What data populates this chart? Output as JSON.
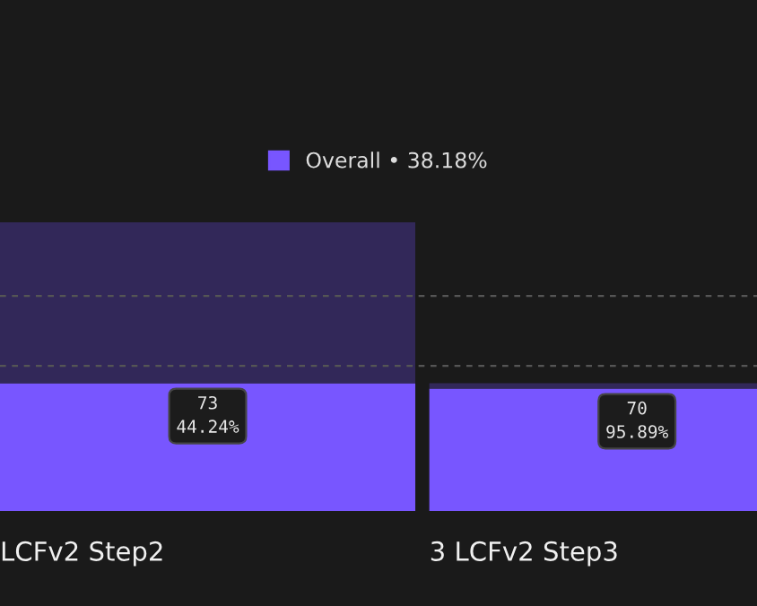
{
  "chart_data": {
    "type": "bar",
    "stacked": true,
    "categories": [
      "LCFv2 Step2",
      "3 LCFv2 Step3"
    ],
    "series": [
      {
        "name": "Overall • 38.18%",
        "color": "#7856ff",
        "values": [
          73,
          70
        ],
        "value_labels": [
          "73\n44.24%",
          "70\n95.89%"
        ]
      },
      {
        "color": "#322859",
        "values": [
          92,
          3
        ]
      }
    ],
    "ref_lines": [
      {
        "axis": "y",
        "value": 83,
        "color": "#555555",
        "line_style": "dashed"
      },
      {
        "axis": "y",
        "value": 123,
        "color": "#555555",
        "line_style": "dashed"
      }
    ],
    "tick_labels": "x",
    "legend": "top"
  }
}
